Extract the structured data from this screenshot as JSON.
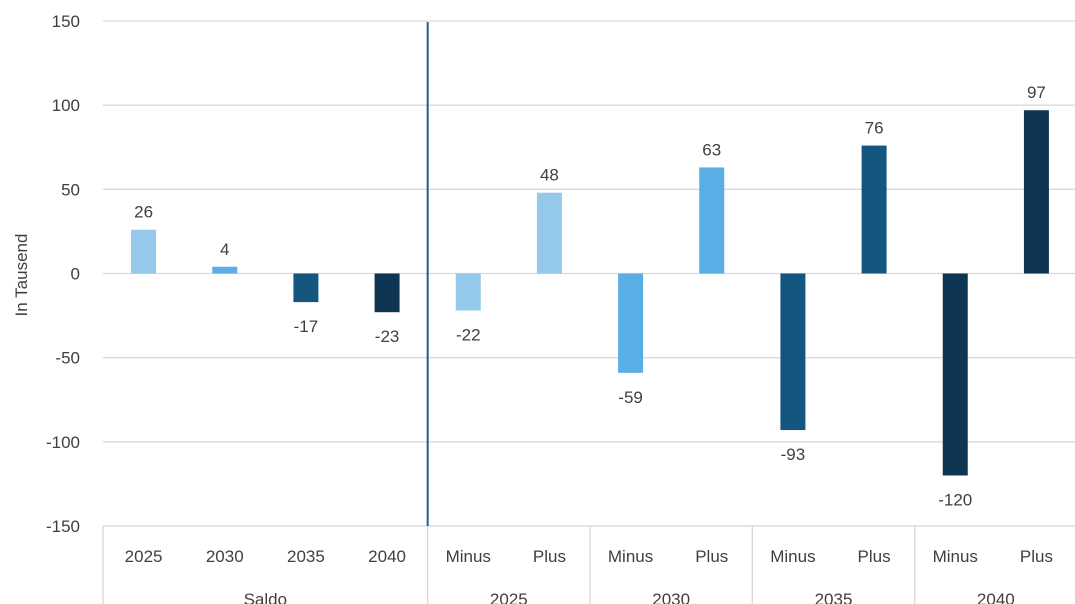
{
  "chart_data": {
    "type": "bar",
    "ylabel": "In Tausend",
    "xlabel": "",
    "ylim": [
      -150,
      150
    ],
    "yticks": [
      150,
      100,
      50,
      0,
      -50,
      -100,
      -150
    ],
    "grid": true,
    "groups": [
      {
        "label": "Saldo",
        "categories": [
          {
            "label": "2025",
            "value": 26,
            "color": "#95c9ec"
          },
          {
            "label": "2030",
            "value": 4,
            "color": "#5aaee6"
          },
          {
            "label": "2035",
            "value": -17,
            "color": "#155681"
          },
          {
            "label": "2040",
            "value": -23,
            "color": "#0e3652"
          }
        ]
      },
      {
        "label": "2025",
        "categories": [
          {
            "label": "Minus",
            "value": -22,
            "color": "#95c9ec"
          },
          {
            "label": "Plus",
            "value": 48,
            "color": "#95c9ec"
          }
        ]
      },
      {
        "label": "2030",
        "categories": [
          {
            "label": "Minus",
            "value": -59,
            "color": "#5aaee6"
          },
          {
            "label": "Plus",
            "value": 63,
            "color": "#5aaee6"
          }
        ]
      },
      {
        "label": "2035",
        "categories": [
          {
            "label": "Minus",
            "value": -93,
            "color": "#155681"
          },
          {
            "label": "Plus",
            "value": 76,
            "color": "#155681"
          }
        ]
      },
      {
        "label": "2040",
        "categories": [
          {
            "label": "Minus",
            "value": -120,
            "color": "#0e3652"
          },
          {
            "label": "Plus",
            "value": 97,
            "color": "#0e3652"
          }
        ]
      }
    ],
    "colors": {
      "grid": "#d9d9d9",
      "separator": "#1f5f8b",
      "text": "#404040"
    }
  }
}
